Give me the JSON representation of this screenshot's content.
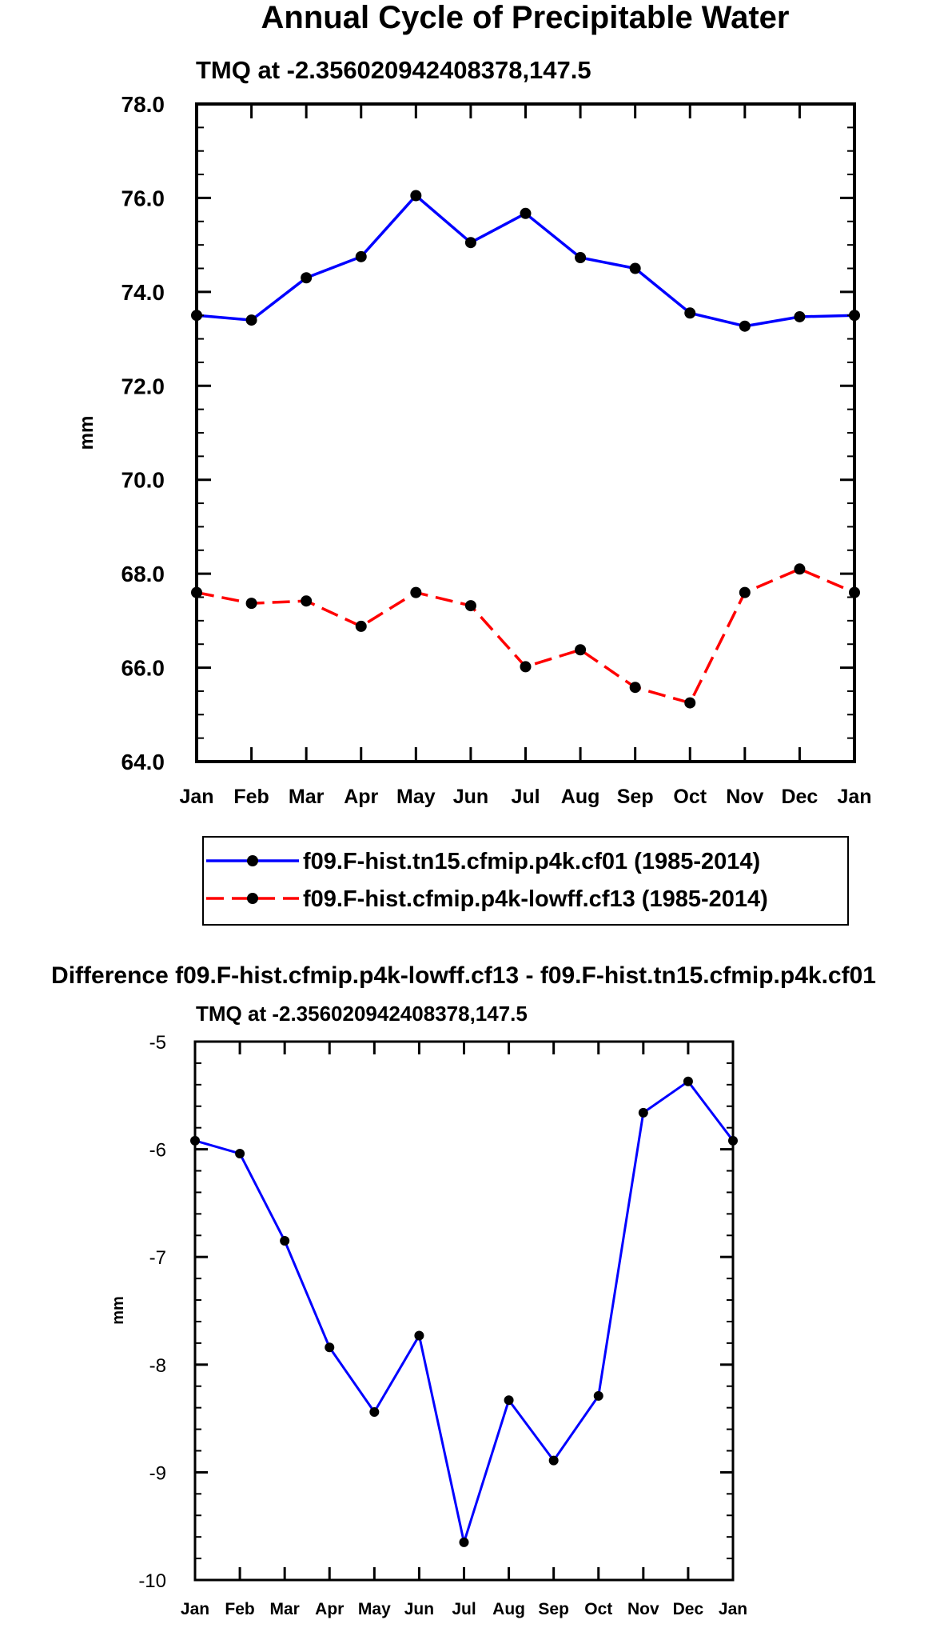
{
  "chart_data": [
    {
      "type": "line",
      "title": "Annual Cycle of Precipitable Water",
      "subtitle": "TMQ at -2.356020942408378,147.5",
      "ylabel": "mm",
      "xlabel": "",
      "ylim": [
        64.0,
        78.0
      ],
      "yticks": [
        "64.0",
        "66.0",
        "68.0",
        "70.0",
        "72.0",
        "74.0",
        "76.0",
        "78.0"
      ],
      "categories": [
        "Jan",
        "Feb",
        "Mar",
        "Apr",
        "May",
        "Jun",
        "Jul",
        "Aug",
        "Sep",
        "Oct",
        "Nov",
        "Dec",
        "Jan"
      ],
      "series": [
        {
          "name": "f09.F-hist.tn15.cfmip.p4k.cf01 (1985-2014)",
          "color": "#0000ff",
          "dash": "solid",
          "values": [
            73.5,
            73.4,
            74.3,
            74.75,
            76.05,
            75.05,
            75.67,
            74.73,
            74.5,
            73.55,
            73.27,
            73.47,
            73.5
          ]
        },
        {
          "name": "f09.F-hist.cfmip.p4k-lowff.cf13 (1985-2014)",
          "color": "#ff0000",
          "dash": "dashed",
          "values": [
            67.6,
            67.37,
            67.42,
            66.88,
            67.6,
            67.32,
            66.02,
            66.38,
            65.58,
            65.25,
            67.6,
            68.1,
            67.6
          ]
        }
      ],
      "legend_position": "bottom-center"
    },
    {
      "type": "line",
      "title": "Difference f09.F-hist.cfmip.p4k-lowff.cf13 - f09.F-hist.tn15.cfmip.p4k.cf01",
      "subtitle": "TMQ at -2.356020942408378,147.5",
      "ylabel": "mm",
      "xlabel": "",
      "ylim": [
        -10,
        -5
      ],
      "yticks": [
        "-10",
        "-9",
        "-8",
        "-7",
        "-6",
        "-5"
      ],
      "categories": [
        "Jan",
        "Feb",
        "Mar",
        "Apr",
        "May",
        "Jun",
        "Jul",
        "Aug",
        "Sep",
        "Oct",
        "Nov",
        "Dec",
        "Jan"
      ],
      "series": [
        {
          "name": "Difference",
          "color": "#0000ff",
          "dash": "solid",
          "values": [
            -5.92,
            -6.04,
            -6.85,
            -7.84,
            -8.44,
            -7.73,
            -9.65,
            -8.33,
            -8.89,
            -8.29,
            -5.66,
            -5.37,
            -5.92
          ]
        }
      ]
    }
  ]
}
